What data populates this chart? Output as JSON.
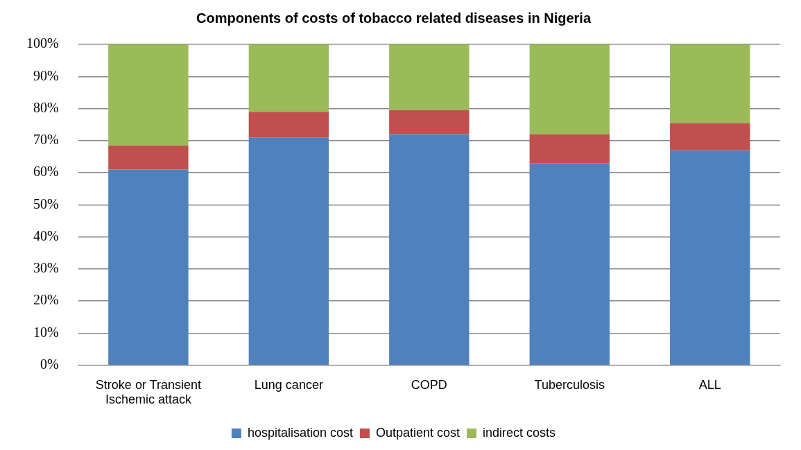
{
  "chart_data": {
    "type": "bar",
    "title": "Components of costs of tobacco related diseases in Nigeria",
    "categories": [
      "Stroke or Transient Ischemic attack",
      "Lung cancer",
      "COPD",
      "Tuberculosis",
      "ALL"
    ],
    "stacked": true,
    "series": [
      {
        "name": "hospitalisation cost",
        "color": "#4f81bd",
        "values": [
          61,
          71,
          72,
          63,
          67
        ]
      },
      {
        "name": "Outpatient cost",
        "color": "#c0504d",
        "values": [
          7.5,
          8,
          7.5,
          9,
          8.5
        ]
      },
      {
        "name": "indirect costs",
        "color": "#9bbb59",
        "values": [
          31.5,
          21,
          20.5,
          28,
          24.5
        ]
      }
    ],
    "ylim": [
      0,
      100
    ],
    "yticks": [
      {
        "value": 0,
        "label": "0%"
      },
      {
        "value": 10,
        "label": "10%"
      },
      {
        "value": 20,
        "label": "20%"
      },
      {
        "value": 30,
        "label": "30%"
      },
      {
        "value": 40,
        "label": "40%"
      },
      {
        "value": 50,
        "label": "50%"
      },
      {
        "value": 60,
        "label": "60%"
      },
      {
        "value": 70,
        "label": "70%"
      },
      {
        "value": 80,
        "label": "80%"
      },
      {
        "value": 90,
        "label": "90%"
      },
      {
        "value": 100,
        "label": "100%"
      }
    ],
    "grid": "y",
    "legend": "bottom"
  }
}
